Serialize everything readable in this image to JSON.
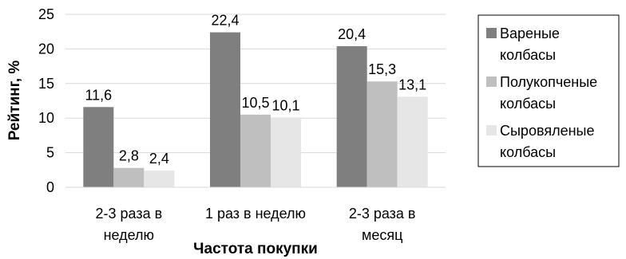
{
  "chart_data": {
    "type": "bar",
    "title": "",
    "xlabel": "Частота покупки",
    "ylabel": "Рейтинг, %",
    "ylim": [
      0,
      25
    ],
    "yticks": [
      0,
      5,
      10,
      15,
      20,
      25
    ],
    "grid": true,
    "legend_position": "right",
    "categories": [
      [
        "2-3 раза в",
        "неделю"
      ],
      [
        "1 раз в неделю"
      ],
      [
        "2-3 раза в",
        "месяц"
      ]
    ],
    "series": [
      {
        "name": "Вареные колбасы",
        "legend_lines": [
          "Вареные",
          "колбасы"
        ],
        "color": "#7f7f7f",
        "values": [
          11.6,
          22.4,
          20.4
        ],
        "labels": [
          "11,6",
          "22,4",
          "20,4"
        ]
      },
      {
        "name": "Полукопченые колбасы",
        "legend_lines": [
          "Полукопченые",
          "колбасы"
        ],
        "color": "#bfbfbf",
        "values": [
          2.8,
          10.5,
          15.3
        ],
        "labels": [
          "2,8",
          "10,5",
          "15,3"
        ]
      },
      {
        "name": "Сыровяленые колбасы",
        "legend_lines": [
          "Сыровяленые",
          "колбасы"
        ],
        "color": "#e6e6e6",
        "values": [
          2.4,
          10.1,
          13.1
        ],
        "labels": [
          "2,4",
          "10,1",
          "13,1"
        ]
      }
    ]
  }
}
